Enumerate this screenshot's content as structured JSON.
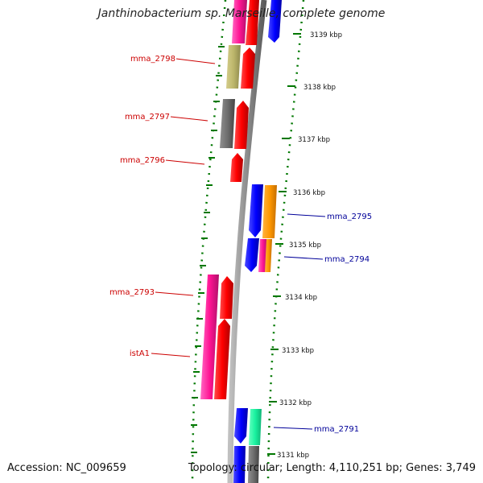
{
  "title": "Janthinobacterium sp. Marseille, complete genome",
  "accession": "Accession: NC_009659",
  "summary": "Topology: circular; Length: 4,110,251 bp; Genes: 3,749",
  "colors": {
    "forward_label": "#cc0000",
    "reverse_label": "#000099",
    "tick": "#007700",
    "backbone": "#8c8c8c"
  },
  "ticks": [
    {
      "label": "3139 kbp"
    },
    {
      "label": "3138 kbp"
    },
    {
      "label": "3137 kbp"
    },
    {
      "label": "3136 kbp"
    },
    {
      "label": "3135 kbp"
    },
    {
      "label": "3134 kbp"
    },
    {
      "label": "3133 kbp"
    },
    {
      "label": "3132 kbp"
    },
    {
      "label": "3131 kbp"
    }
  ],
  "gene_labels": [
    {
      "name": "mma_2798",
      "strand": "forward"
    },
    {
      "name": "mma_2797",
      "strand": "forward"
    },
    {
      "name": "mma_2796",
      "strand": "forward"
    },
    {
      "name": "mma_2795",
      "strand": "reverse"
    },
    {
      "name": "mma_2794",
      "strand": "reverse"
    },
    {
      "name": "mma_2793",
      "strand": "forward"
    },
    {
      "name": "istA1",
      "strand": "forward"
    },
    {
      "name": "mma_2791",
      "strand": "reverse"
    }
  ]
}
